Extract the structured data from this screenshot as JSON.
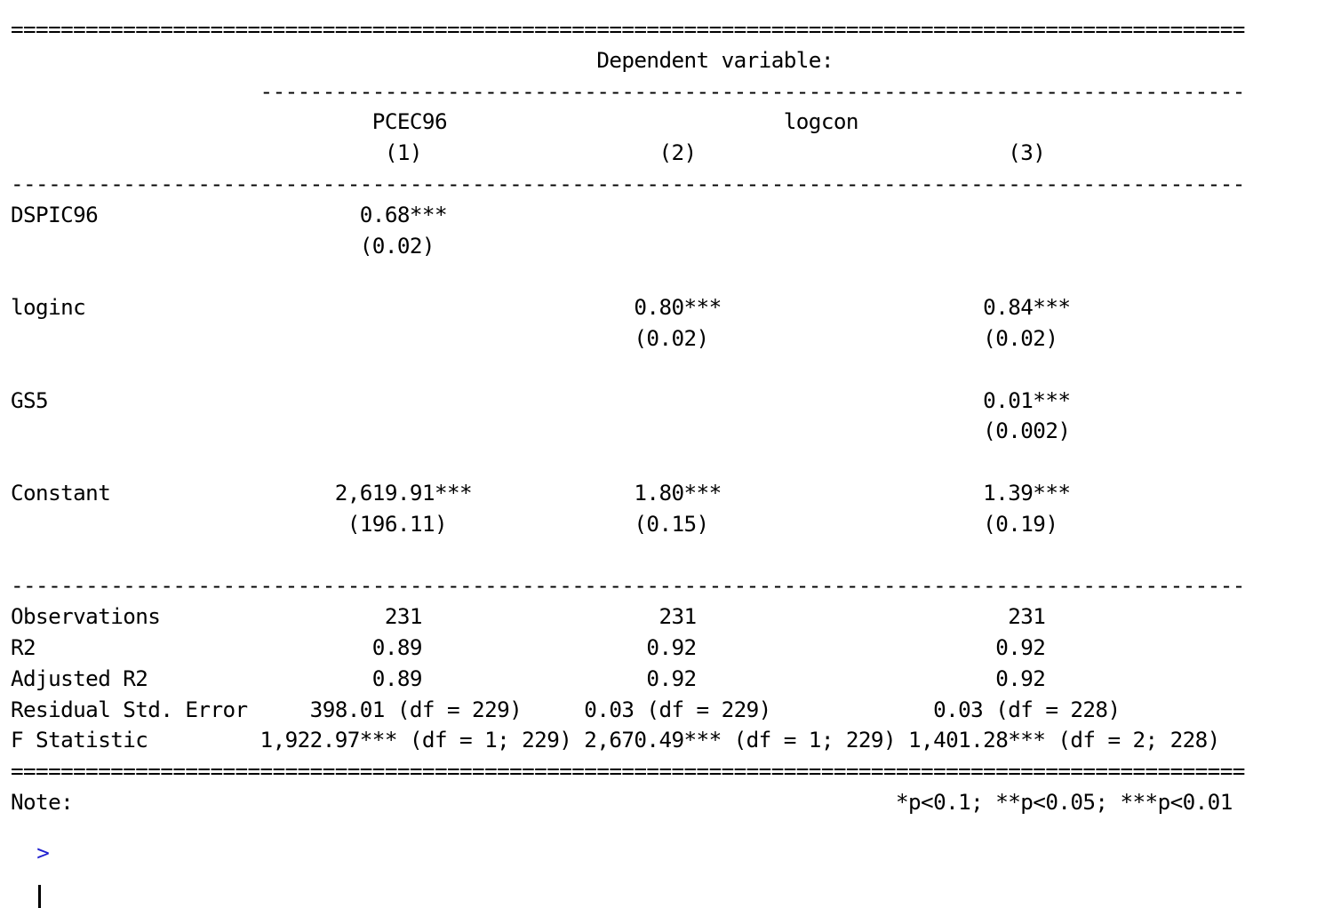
{
  "output_lines": [
    "===================================================================================================",
    "                                               Dependent variable:                                 ",
    "                    -------------------------------------------------------------------------------",
    "                             PCEC96                           logcon                              ",
    "                              (1)                   (2)                         (3)               ",
    "---------------------------------------------------------------------------------------------------",
    "DSPIC96                     0.68***                                                               ",
    "                            (0.02)                                                                 ",
    "",
    "loginc                                            0.80***                     0.84***             ",
    "                                                  (0.02)                      (0.02)              ",
    "",
    "GS5                                                                           0.01***             ",
    "                                                                              (0.002)             ",
    "",
    "Constant                  2,619.91***             1.80***                     1.39***             ",
    "                           (196.11)               (0.15)                      (0.19)              ",
    "",
    "---------------------------------------------------------------------------------------------------",
    "Observations                  231                   231                         231               ",
    "R2                           0.89                  0.92                        0.92               ",
    "Adjusted R2                  0.89                  0.92                        0.92               ",
    "Residual Std. Error     398.01 (df = 229)     0.03 (df = 229)             0.03 (df = 228)         ",
    "F Statistic         1,922.97*** (df = 1; 229) 2,670.49*** (df = 1; 229) 1,401.28*** (df = 2; 228)",
    "===================================================================================================",
    "Note:                                                                  *p<0.1; **p<0.05; ***p<0.01"
  ],
  "prompt": {
    "symbol": ">",
    "input_value": ""
  }
}
